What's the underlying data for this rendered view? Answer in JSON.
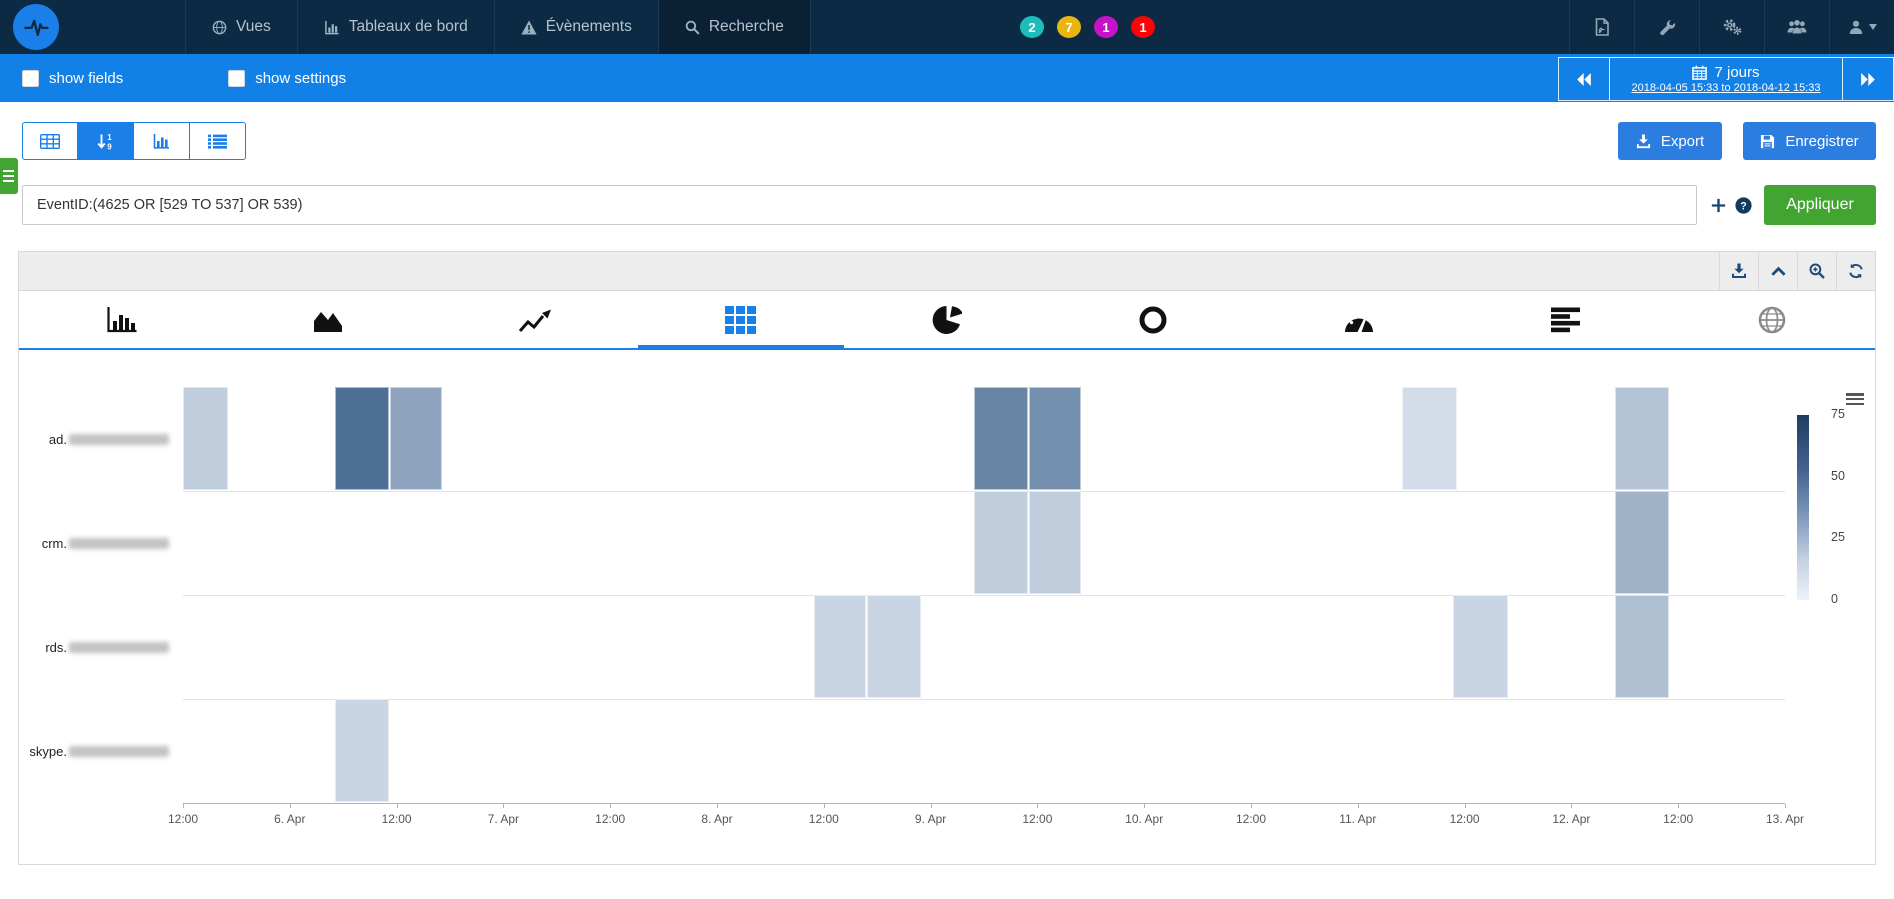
{
  "navbar": {
    "bg": "#0d2a44",
    "items": [
      {
        "label": "Vues",
        "icon": "globe-icon"
      },
      {
        "label": "Tableaux de bord",
        "icon": "bar-chart-icon"
      },
      {
        "label": "Évènements",
        "icon": "warning-triangle-icon"
      },
      {
        "label": "Recherche",
        "icon": "search-icon",
        "active": true
      }
    ],
    "badges": [
      {
        "value": "2",
        "color": "#1dbdbd"
      },
      {
        "value": "7",
        "color": "#e9b50f"
      },
      {
        "value": "1",
        "color": "#c713c7"
      },
      {
        "value": "1",
        "color": "#fb0409"
      }
    ],
    "tool_icons": [
      "pdf-file-icon",
      "wrench-icon",
      "gears-icon",
      "user-group-icon",
      "account-menu-icon"
    ]
  },
  "filterbar": {
    "bg": "#1181e8",
    "show_fields_label": "show fields",
    "show_fields_checked": false,
    "show_settings_label": "show settings",
    "show_settings_checked": false,
    "time_widget": {
      "period_label": "7 jours",
      "range_text": "2018-04-05 15:33 to 2018-04-12 15:33",
      "icons": [
        "double-chevron-left-icon",
        "calendar-icon",
        "double-chevron-right-icon"
      ]
    }
  },
  "toolbar": {
    "view_modes": [
      "table-view-icon",
      "sort-numeric-view-icon",
      "chart-view-icon",
      "list-view-icon"
    ],
    "active_view_index": 1,
    "export_label": "Export",
    "save_label": "Enregistrer",
    "accent_color": "#2b7de0"
  },
  "search": {
    "query": "EventID:(4625 OR [529 TO 537] OR 539)",
    "apply_label": "Appliquer",
    "apply_color": "#43a531",
    "icons": [
      "plus-icon",
      "question-circle-icon"
    ]
  },
  "chart_panel": {
    "header_actions": [
      "download-icon",
      "collapse-up-icon",
      "zoom-in-icon",
      "refresh-icon"
    ],
    "chart_tabs": [
      "bar-chart-tab",
      "area-chart-tab",
      "line-chart-tab",
      "grid-heatmap-tab",
      "pie-chart-tab",
      "donut-chart-tab",
      "gauge-tab",
      "horizontal-bars-tab",
      "world-map-tab"
    ],
    "active_tab_index": 3,
    "disabled_tab_index": 8
  },
  "chart_data": {
    "type": "heatmap",
    "rows": [
      {
        "label_prefix": "ad.",
        "domain_redacted": true
      },
      {
        "label_prefix": "crm.",
        "domain_redacted": true
      },
      {
        "label_prefix": "rds.",
        "domain_redacted": true
      },
      {
        "label_prefix": "skype.",
        "domain_redacted": true
      }
    ],
    "x_ticks": [
      "12:00",
      "6. Apr",
      "12:00",
      "7. Apr",
      "12:00",
      "8. Apr",
      "12:00",
      "9. Apr",
      "12:00",
      "10. Apr",
      "12:00",
      "11. Apr",
      "12:00",
      "12. Apr",
      "12:00",
      "13. Apr"
    ],
    "scale": {
      "min": 0,
      "max": 75,
      "legend_ticks": [
        75,
        50,
        25,
        0
      ],
      "color_min": "#e7eef6",
      "color_max": "#29507e"
    },
    "cells": [
      {
        "row": 0,
        "x0": 0.0,
        "x1": 0.029,
        "value": 15
      },
      {
        "row": 0,
        "x0": 0.095,
        "x1": 0.129,
        "value": 60
      },
      {
        "row": 0,
        "x0": 0.129,
        "x1": 0.162,
        "value": 35
      },
      {
        "row": 0,
        "x0": 0.494,
        "x1": 0.528,
        "value": 50
      },
      {
        "row": 0,
        "x0": 0.528,
        "x1": 0.561,
        "value": 45
      },
      {
        "row": 0,
        "x0": 0.761,
        "x1": 0.796,
        "value": 8
      },
      {
        "row": 0,
        "x0": 0.894,
        "x1": 0.928,
        "value": 20
      },
      {
        "row": 1,
        "x0": 0.494,
        "x1": 0.528,
        "value": 15
      },
      {
        "row": 1,
        "x0": 0.528,
        "x1": 0.561,
        "value": 15
      },
      {
        "row": 1,
        "x0": 0.894,
        "x1": 0.928,
        "value": 28
      },
      {
        "row": 2,
        "x0": 0.394,
        "x1": 0.427,
        "value": 12
      },
      {
        "row": 2,
        "x0": 0.427,
        "x1": 0.461,
        "value": 12
      },
      {
        "row": 2,
        "x0": 0.793,
        "x1": 0.828,
        "value": 12
      },
      {
        "row": 2,
        "x0": 0.894,
        "x1": 0.928,
        "value": 22
      },
      {
        "row": 3,
        "x0": 0.095,
        "x1": 0.129,
        "value": 12
      }
    ]
  }
}
